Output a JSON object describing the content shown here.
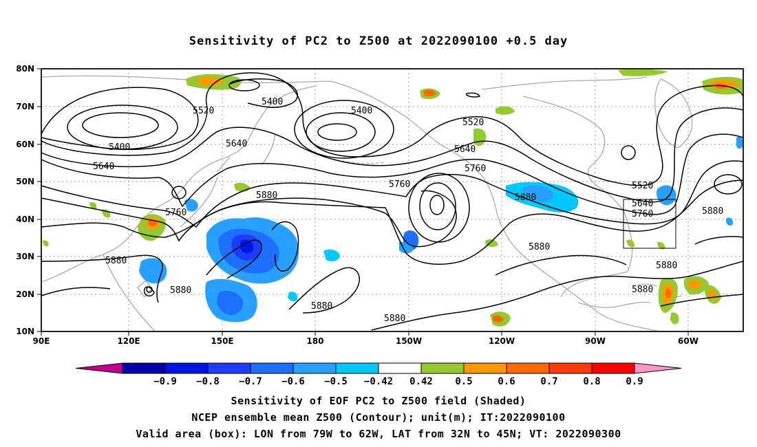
{
  "title": "Sensitivity of PC2 to Z500 at 2022090100 +0.5 day",
  "captions": [
    "Sensitivity of EOF PC2 to Z500 field (Shaded)",
    "NCEP ensemble mean Z500 (Contour); unit(m); IT:2022090100",
    "Valid area (box): LON from 79W to 62W, LAT from 32N to 45N; VT: 2022090300"
  ],
  "lat_labels": [
    "80N",
    "70N",
    "60N",
    "50N",
    "40N",
    "30N",
    "20N",
    "10N"
  ],
  "lon_labels": [
    "90E",
    "120E",
    "150E",
    "180",
    "150W",
    "120W",
    "90W",
    "60W"
  ],
  "colorbar": {
    "labels": [
      "-0.9",
      "-0.8",
      "-0.7",
      "-0.6",
      "-0.5",
      "-0.42",
      "0.42",
      "0.5",
      "0.6",
      "0.7",
      "0.8",
      "0.9"
    ],
    "colors": [
      "#c0008c",
      "#0000a8",
      "#0014e6",
      "#1e3cff",
      "#1e6eff",
      "#28a0ff",
      "#00c8ff",
      "#ffffff",
      "#96c832",
      "#ff9900",
      "#ff6a00",
      "#ff3c0a",
      "#ff0000",
      "#ff96c8"
    ]
  },
  "contour_labels": [
    {
      "text": "5400"
    },
    {
      "text": "5400"
    },
    {
      "text": "5400"
    },
    {
      "text": "5520"
    },
    {
      "text": "5520"
    },
    {
      "text": "5520"
    },
    {
      "text": "5640"
    },
    {
      "text": "5640"
    },
    {
      "text": "5640"
    },
    {
      "text": "5640"
    },
    {
      "text": "5760"
    },
    {
      "text": "5760"
    },
    {
      "text": "5760"
    },
    {
      "text": "5760"
    },
    {
      "text": "5880"
    },
    {
      "text": "5880"
    },
    {
      "text": "5880"
    },
    {
      "text": "5880"
    },
    {
      "text": "5880"
    },
    {
      "text": "5880"
    },
    {
      "text": "5880"
    },
    {
      "text": "5880"
    },
    {
      "text": "5880"
    },
    {
      "text": "5880"
    }
  ],
  "valid_box": {
    "lon_west": "79W",
    "lon_east": "62W",
    "lat_south": "32N",
    "lat_north": "45N"
  }
}
